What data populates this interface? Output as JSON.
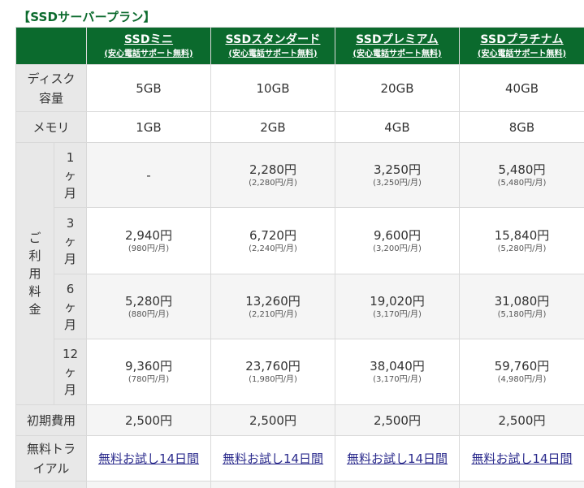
{
  "section_title": "【SSDサーバープラン】",
  "plans": [
    {
      "name": "SSDミニ",
      "sub": "(安心電話サポート無料)"
    },
    {
      "name": "SSDスタンダード",
      "sub": "(安心電話サポート無料)"
    },
    {
      "name": "SSDプレミアム",
      "sub": "(安心電話サポート無料)"
    },
    {
      "name": "SSDプラチナム",
      "sub": "(安心電話サポート無料)"
    }
  ],
  "rows": {
    "disk": {
      "label_line1": "ディスク",
      "label_line2": "容量",
      "values": [
        "5GB",
        "10GB",
        "20GB",
        "40GB"
      ]
    },
    "memory": {
      "label": "メモリ",
      "values": [
        "1GB",
        "2GB",
        "4GB",
        "8GB"
      ]
    },
    "usage_fee": {
      "label_chars": [
        "ご",
        "利",
        "用",
        "料",
        "金"
      ],
      "terms": [
        {
          "label_chars": [
            "1",
            "ヶ",
            "月"
          ],
          "prices": [
            {
              "main": "-",
              "sub": ""
            },
            {
              "main": "2,280円",
              "sub": "(2,280円/月)"
            },
            {
              "main": "3,250円",
              "sub": "(3,250円/月)"
            },
            {
              "main": "5,480円",
              "sub": "(5,480円/月)"
            }
          ]
        },
        {
          "label_chars": [
            "3",
            "ヶ",
            "月"
          ],
          "prices": [
            {
              "main": "2,940円",
              "sub": "(980円/月)"
            },
            {
              "main": "6,720円",
              "sub": "(2,240円/月)"
            },
            {
              "main": "9,600円",
              "sub": "(3,200円/月)"
            },
            {
              "main": "15,840円",
              "sub": "(5,280円/月)"
            }
          ]
        },
        {
          "label_chars": [
            "6",
            "ヶ",
            "月"
          ],
          "prices": [
            {
              "main": "5,280円",
              "sub": "(880円/月)"
            },
            {
              "main": "13,260円",
              "sub": "(2,210円/月)"
            },
            {
              "main": "19,020円",
              "sub": "(3,170円/月)"
            },
            {
              "main": "31,080円",
              "sub": "(5,180円/月)"
            }
          ]
        },
        {
          "label_chars": [
            "12",
            "ヶ",
            "月"
          ],
          "prices": [
            {
              "main": "9,360円",
              "sub": "(780円/月)"
            },
            {
              "main": "23,760円",
              "sub": "(1,980円/月)"
            },
            {
              "main": "38,040円",
              "sub": "(3,170円/月)"
            },
            {
              "main": "59,760円",
              "sub": "(4,980円/月)"
            }
          ]
        }
      ]
    },
    "setup": {
      "label": "初期費用",
      "values": [
        "2,500円",
        "2,500円",
        "2,500円",
        "2,500円"
      ]
    },
    "trial": {
      "label_line1": "無料トラ",
      "label_line2": "イアル",
      "links": [
        "無料お試し14日間",
        "無料お試し14日間",
        "無料お試し14日間",
        "無料お試し14日間"
      ]
    }
  },
  "colors": {
    "header_green": "#0b6a2d",
    "label_gray": "#e8e8e8",
    "link_blue": "#2a2a8c"
  }
}
